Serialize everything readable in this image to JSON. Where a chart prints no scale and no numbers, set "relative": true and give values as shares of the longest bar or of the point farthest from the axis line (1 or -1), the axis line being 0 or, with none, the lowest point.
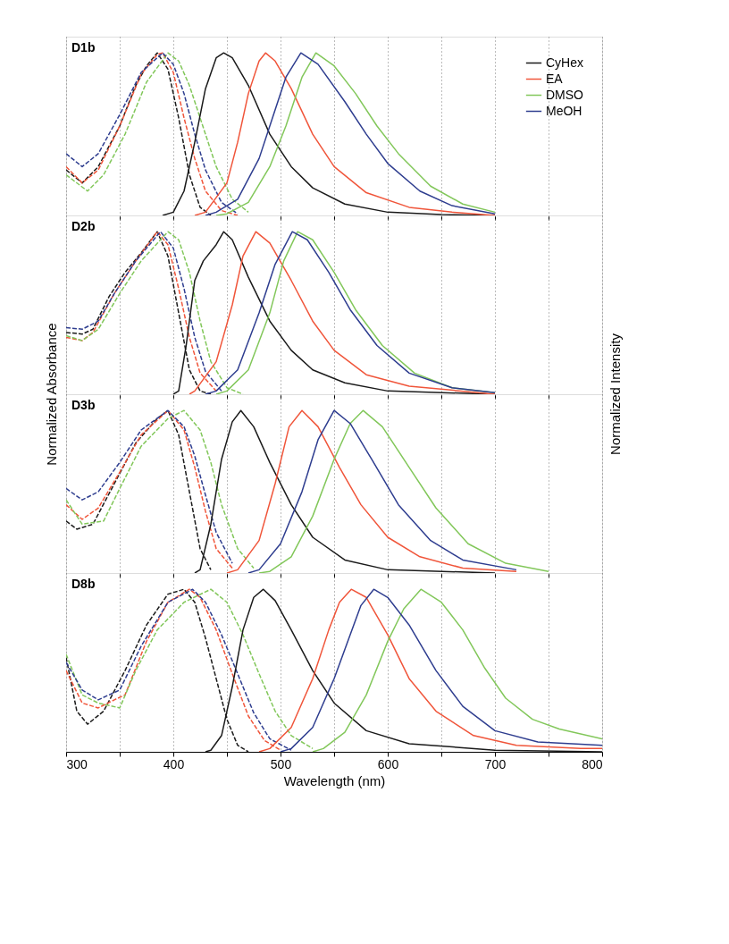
{
  "chart_data": [
    {
      "type": "line",
      "title": "D1b",
      "relative": true,
      "xlim": [
        300,
        800
      ],
      "xticks": [
        {
          "value": 300,
          "label": null
        },
        {
          "value": 350,
          "label": null
        },
        {
          "value": 400,
          "label": null
        },
        {
          "value": 450,
          "label": null
        },
        {
          "value": 500,
          "label": null
        },
        {
          "value": 550,
          "label": null
        },
        {
          "value": 600,
          "label": null
        },
        {
          "value": 650,
          "label": null
        },
        {
          "value": 700,
          "label": null
        },
        {
          "value": 750,
          "label": null
        },
        {
          "value": 800,
          "label": null
        }
      ],
      "tick_labels": false,
      "grid": "x",
      "legend": "top right",
      "series": [
        {
          "color": "#1a1a1a",
          "line_style": "dashed",
          "x": [
            300,
            315,
            330,
            350,
            365,
            375,
            385,
            395,
            405,
            415,
            425,
            435
          ],
          "values": [
            0.28,
            0.2,
            0.3,
            0.55,
            0.8,
            0.92,
            1,
            0.9,
            0.6,
            0.25,
            0.05,
            0
          ]
        },
        {
          "color": "#f0553a",
          "line_style": "dashed",
          "x": [
            300,
            315,
            330,
            350,
            370,
            385,
            390,
            400,
            410,
            420,
            430,
            445,
            460
          ],
          "values": [
            0.3,
            0.2,
            0.28,
            0.55,
            0.87,
            0.99,
            1,
            0.88,
            0.6,
            0.35,
            0.15,
            0.03,
            0
          ]
        },
        {
          "color": "#82c75a",
          "line_style": "dashed",
          "x": [
            300,
            320,
            335,
            355,
            375,
            395,
            405,
            415,
            425,
            440,
            455,
            470
          ],
          "values": [
            0.25,
            0.15,
            0.25,
            0.5,
            0.82,
            1,
            0.95,
            0.8,
            0.6,
            0.3,
            0.1,
            0.02
          ]
        },
        {
          "color": "#2e3d8f",
          "line_style": "dashed",
          "x": [
            300,
            315,
            330,
            350,
            370,
            390,
            400,
            410,
            420,
            430,
            445,
            460
          ],
          "values": [
            0.38,
            0.3,
            0.38,
            0.62,
            0.88,
            1,
            0.93,
            0.75,
            0.5,
            0.28,
            0.08,
            0.01
          ]
        },
        {
          "name": "CyHex",
          "color": "#1a1a1a",
          "line_style": "solid",
          "x": [
            390,
            400,
            410,
            420,
            430,
            440,
            447,
            455,
            470,
            490,
            510,
            530,
            560,
            600,
            650,
            700
          ],
          "values": [
            0,
            0.02,
            0.15,
            0.45,
            0.78,
            0.97,
            1,
            0.97,
            0.8,
            0.5,
            0.3,
            0.17,
            0.07,
            0.02,
            0.005,
            0
          ]
        },
        {
          "name": "EA",
          "color": "#f0553a",
          "line_style": "solid",
          "x": [
            420,
            430,
            450,
            460,
            470,
            480,
            486,
            495,
            510,
            530,
            550,
            580,
            620,
            660,
            700
          ],
          "values": [
            0,
            0.02,
            0.2,
            0.45,
            0.75,
            0.95,
            1,
            0.95,
            0.78,
            0.5,
            0.3,
            0.14,
            0.05,
            0.02,
            0
          ]
        },
        {
          "name": "DMSO",
          "color": "#82c75a",
          "line_style": "solid",
          "x": [
            440,
            450,
            470,
            490,
            505,
            520,
            533,
            550,
            570,
            590,
            610,
            640,
            670,
            700
          ],
          "values": [
            0,
            0.01,
            0.08,
            0.3,
            0.55,
            0.85,
            1,
            0.92,
            0.75,
            0.55,
            0.38,
            0.18,
            0.07,
            0.02
          ]
        },
        {
          "name": "MeOH",
          "color": "#2e3d8f",
          "line_style": "solid",
          "x": [
            430,
            440,
            460,
            480,
            495,
            505,
            519,
            535,
            560,
            580,
            600,
            630,
            660,
            700
          ],
          "values": [
            0,
            0.02,
            0.1,
            0.35,
            0.65,
            0.85,
            1,
            0.93,
            0.7,
            0.5,
            0.32,
            0.15,
            0.06,
            0.01
          ]
        }
      ]
    },
    {
      "type": "line",
      "title": "D2b",
      "ylabel": "Normalized Absorbance",
      "y2label": "Normalized Intensity",
      "relative": true,
      "xlim": [
        300,
        800
      ],
      "xticks": [
        {
          "value": 300,
          "label": null
        },
        {
          "value": 350,
          "label": null
        },
        {
          "value": 400,
          "label": null
        },
        {
          "value": 450,
          "label": null
        },
        {
          "value": 500,
          "label": null
        },
        {
          "value": 550,
          "label": null
        },
        {
          "value": 600,
          "label": null
        },
        {
          "value": 650,
          "label": null
        },
        {
          "value": 700,
          "label": null
        },
        {
          "value": 750,
          "label": null
        },
        {
          "value": 800,
          "label": null
        }
      ],
      "tick_labels": false,
      "grid": "x",
      "series": [
        {
          "color": "#1a1a1a",
          "line_style": "dashed",
          "x": [
            300,
            315,
            325,
            340,
            355,
            370,
            385,
            395,
            405,
            415,
            425,
            435
          ],
          "values": [
            0.38,
            0.37,
            0.4,
            0.6,
            0.75,
            0.87,
            1,
            0.85,
            0.5,
            0.15,
            0.02,
            0
          ]
        },
        {
          "color": "#f0553a",
          "line_style": "dashed",
          "x": [
            300,
            315,
            325,
            345,
            365,
            385,
            395,
            405,
            415,
            425,
            440
          ],
          "values": [
            0.35,
            0.33,
            0.38,
            0.62,
            0.82,
            1,
            0.92,
            0.65,
            0.35,
            0.13,
            0.02
          ]
        },
        {
          "color": "#82c75a",
          "line_style": "dashed",
          "x": [
            300,
            315,
            330,
            350,
            370,
            395,
            405,
            415,
            425,
            435,
            450,
            465
          ],
          "values": [
            0.36,
            0.33,
            0.4,
            0.62,
            0.82,
            1,
            0.95,
            0.75,
            0.45,
            0.2,
            0.04,
            0
          ]
        },
        {
          "color": "#2e3d8f",
          "line_style": "dashed",
          "x": [
            300,
            315,
            330,
            345,
            365,
            388,
            400,
            410,
            420,
            430,
            445
          ],
          "values": [
            0.41,
            0.4,
            0.45,
            0.62,
            0.82,
            1,
            0.9,
            0.65,
            0.35,
            0.14,
            0.02
          ]
        },
        {
          "color": "#1a1a1a",
          "line_style": "solid",
          "x": [
            400,
            405,
            412,
            420,
            428,
            440,
            447,
            455,
            470,
            490,
            510,
            530,
            560,
            600,
            700
          ],
          "values": [
            0,
            0.02,
            0.3,
            0.7,
            0.82,
            0.92,
            1,
            0.95,
            0.72,
            0.45,
            0.27,
            0.15,
            0.07,
            0.02,
            0
          ]
        },
        {
          "color": "#f0553a",
          "line_style": "solid",
          "x": [
            415,
            420,
            440,
            455,
            465,
            477,
            490,
            510,
            530,
            550,
            580,
            620,
            700
          ],
          "values": [
            0,
            0.02,
            0.2,
            0.55,
            0.85,
            1,
            0.93,
            0.7,
            0.45,
            0.27,
            0.12,
            0.05,
            0
          ]
        },
        {
          "color": "#82c75a",
          "line_style": "solid",
          "x": [
            440,
            450,
            470,
            490,
            503,
            516,
            530,
            550,
            570,
            595,
            625,
            660,
            700
          ],
          "values": [
            0,
            0.02,
            0.15,
            0.5,
            0.82,
            1,
            0.95,
            0.75,
            0.52,
            0.3,
            0.13,
            0.04,
            0.01
          ]
        },
        {
          "color": "#2e3d8f",
          "line_style": "solid",
          "x": [
            430,
            440,
            460,
            480,
            495,
            511,
            525,
            545,
            565,
            590,
            620,
            660,
            700
          ],
          "values": [
            0,
            0.02,
            0.15,
            0.5,
            0.8,
            1,
            0.95,
            0.75,
            0.52,
            0.3,
            0.13,
            0.04,
            0.01
          ]
        }
      ]
    },
    {
      "type": "line",
      "title": "D3b",
      "relative": true,
      "xlim": [
        300,
        800
      ],
      "xticks": [
        {
          "value": 300,
          "label": null
        },
        {
          "value": 350,
          "label": null
        },
        {
          "value": 400,
          "label": null
        },
        {
          "value": 450,
          "label": null
        },
        {
          "value": 500,
          "label": null
        },
        {
          "value": 550,
          "label": null
        },
        {
          "value": 600,
          "label": null
        },
        {
          "value": 650,
          "label": null
        },
        {
          "value": 700,
          "label": null
        },
        {
          "value": 750,
          "label": null
        },
        {
          "value": 800,
          "label": null
        }
      ],
      "tick_labels": false,
      "grid": "x",
      "series": [
        {
          "color": "#1a1a1a",
          "line_style": "dashed",
          "x": [
            300,
            310,
            325,
            345,
            365,
            385,
            395,
            405,
            415,
            425,
            435
          ],
          "values": [
            0.32,
            0.27,
            0.3,
            0.55,
            0.8,
            0.95,
            1,
            0.85,
            0.5,
            0.15,
            0.02
          ]
        },
        {
          "color": "#f0553a",
          "line_style": "dashed",
          "x": [
            300,
            315,
            330,
            350,
            370,
            395,
            410,
            420,
            430,
            440,
            455
          ],
          "values": [
            0.42,
            0.33,
            0.4,
            0.62,
            0.85,
            1,
            0.88,
            0.65,
            0.38,
            0.15,
            0.03
          ]
        },
        {
          "color": "#82c75a",
          "line_style": "dashed",
          "x": [
            300,
            315,
            335,
            350,
            370,
            395,
            410,
            425,
            435,
            445,
            460,
            475
          ],
          "values": [
            0.45,
            0.3,
            0.32,
            0.52,
            0.78,
            0.95,
            1,
            0.88,
            0.68,
            0.42,
            0.15,
            0.03
          ]
        },
        {
          "color": "#2e3d8f",
          "line_style": "dashed",
          "x": [
            300,
            315,
            330,
            350,
            370,
            395,
            410,
            420,
            430,
            440,
            455
          ],
          "values": [
            0.52,
            0.45,
            0.5,
            0.68,
            0.88,
            1,
            0.9,
            0.72,
            0.48,
            0.25,
            0.06
          ]
        },
        {
          "color": "#1a1a1a",
          "line_style": "solid",
          "x": [
            420,
            425,
            435,
            445,
            455,
            463,
            475,
            490,
            510,
            530,
            560,
            600,
            700
          ],
          "values": [
            0,
            0.02,
            0.3,
            0.7,
            0.93,
            1,
            0.9,
            0.68,
            0.42,
            0.22,
            0.08,
            0.02,
            0
          ]
        },
        {
          "color": "#f0553a",
          "line_style": "solid",
          "x": [
            450,
            460,
            480,
            495,
            508,
            520,
            535,
            555,
            575,
            600,
            630,
            670,
            720
          ],
          "values": [
            0,
            0.02,
            0.2,
            0.55,
            0.9,
            1,
            0.9,
            0.65,
            0.42,
            0.22,
            0.1,
            0.03,
            0.01
          ]
        },
        {
          "color": "#82c75a",
          "line_style": "solid",
          "x": [
            480,
            490,
            510,
            530,
            550,
            565,
            577,
            595,
            620,
            645,
            675,
            710,
            750
          ],
          "values": [
            0,
            0.01,
            0.1,
            0.35,
            0.7,
            0.92,
            1,
            0.9,
            0.65,
            0.4,
            0.18,
            0.06,
            0.01
          ]
        },
        {
          "color": "#2e3d8f",
          "line_style": "solid",
          "x": [
            470,
            480,
            500,
            520,
            535,
            550,
            565,
            585,
            610,
            640,
            670,
            720
          ],
          "values": [
            0,
            0.02,
            0.18,
            0.5,
            0.82,
            1,
            0.92,
            0.7,
            0.42,
            0.2,
            0.08,
            0.02
          ]
        }
      ]
    },
    {
      "type": "line",
      "title": "D8b",
      "xlabel": "Wavelength (nm)",
      "relative": true,
      "xlim": [
        300,
        800
      ],
      "xticks": [
        300,
        {
          "value": 350,
          "label": null
        },
        400,
        {
          "value": 450,
          "label": null
        },
        500,
        {
          "value": 550,
          "label": null
        },
        600,
        {
          "value": 650,
          "label": null
        },
        700,
        {
          "value": 750,
          "label": null
        },
        800
      ],
      "tick_labels": "x",
      "grid": "x",
      "series": [
        {
          "color": "#1a1a1a",
          "line_style": "dashed",
          "x": [
            300,
            310,
            320,
            335,
            355,
            375,
            395,
            410,
            420,
            430,
            440,
            450,
            460,
            470
          ],
          "values": [
            0.58,
            0.25,
            0.17,
            0.25,
            0.5,
            0.78,
            0.97,
            1,
            0.92,
            0.7,
            0.45,
            0.2,
            0.04,
            0
          ]
        },
        {
          "color": "#f0553a",
          "line_style": "dashed",
          "x": [
            300,
            315,
            330,
            345,
            355,
            375,
            395,
            415,
            425,
            440,
            455,
            470,
            485,
            500
          ],
          "values": [
            0.5,
            0.3,
            0.27,
            0.32,
            0.35,
            0.68,
            0.92,
            1,
            0.95,
            0.75,
            0.48,
            0.22,
            0.07,
            0.01
          ]
        },
        {
          "color": "#82c75a",
          "line_style": "dashed",
          "x": [
            300,
            315,
            330,
            350,
            365,
            385,
            410,
            435,
            450,
            465,
            480,
            495,
            510,
            530
          ],
          "values": [
            0.6,
            0.35,
            0.3,
            0.27,
            0.5,
            0.75,
            0.92,
            1,
            0.92,
            0.72,
            0.48,
            0.25,
            0.1,
            0.02
          ]
        },
        {
          "color": "#2e3d8f",
          "line_style": "dashed",
          "x": [
            300,
            315,
            330,
            340,
            350,
            370,
            395,
            418,
            430,
            445,
            460,
            475,
            490,
            510
          ],
          "values": [
            0.55,
            0.38,
            0.32,
            0.35,
            0.38,
            0.65,
            0.92,
            1,
            0.92,
            0.72,
            0.48,
            0.24,
            0.08,
            0.01
          ]
        },
        {
          "color": "#1a1a1a",
          "line_style": "solid",
          "x": [
            430,
            435,
            445,
            455,
            465,
            475,
            484,
            495,
            510,
            530,
            550,
            580,
            620,
            700,
            800
          ],
          "values": [
            0,
            0.01,
            0.1,
            0.4,
            0.75,
            0.95,
            1,
            0.93,
            0.75,
            0.5,
            0.3,
            0.13,
            0.05,
            0.01,
            0
          ]
        },
        {
          "color": "#f0553a",
          "line_style": "solid",
          "x": [
            480,
            490,
            510,
            530,
            545,
            555,
            566,
            580,
            600,
            620,
            645,
            680,
            720,
            780,
            800
          ],
          "values": [
            0,
            0.02,
            0.15,
            0.45,
            0.75,
            0.92,
            1,
            0.95,
            0.72,
            0.45,
            0.25,
            0.1,
            0.04,
            0.02,
            0.02
          ]
        },
        {
          "color": "#82c75a",
          "line_style": "solid",
          "x": [
            530,
            540,
            560,
            580,
            600,
            615,
            631,
            650,
            670,
            690,
            710,
            735,
            760,
            800
          ],
          "values": [
            0,
            0.02,
            0.12,
            0.35,
            0.68,
            0.88,
            1,
            0.92,
            0.75,
            0.52,
            0.33,
            0.2,
            0.14,
            0.08
          ]
        },
        {
          "color": "#2e3d8f",
          "line_style": "solid",
          "x": [
            500,
            510,
            530,
            550,
            565,
            575,
            587,
            600,
            620,
            645,
            670,
            700,
            740,
            800
          ],
          "values": [
            0,
            0.02,
            0.15,
            0.45,
            0.72,
            0.9,
            1,
            0.95,
            0.78,
            0.5,
            0.28,
            0.13,
            0.06,
            0.04
          ]
        }
      ]
    }
  ]
}
